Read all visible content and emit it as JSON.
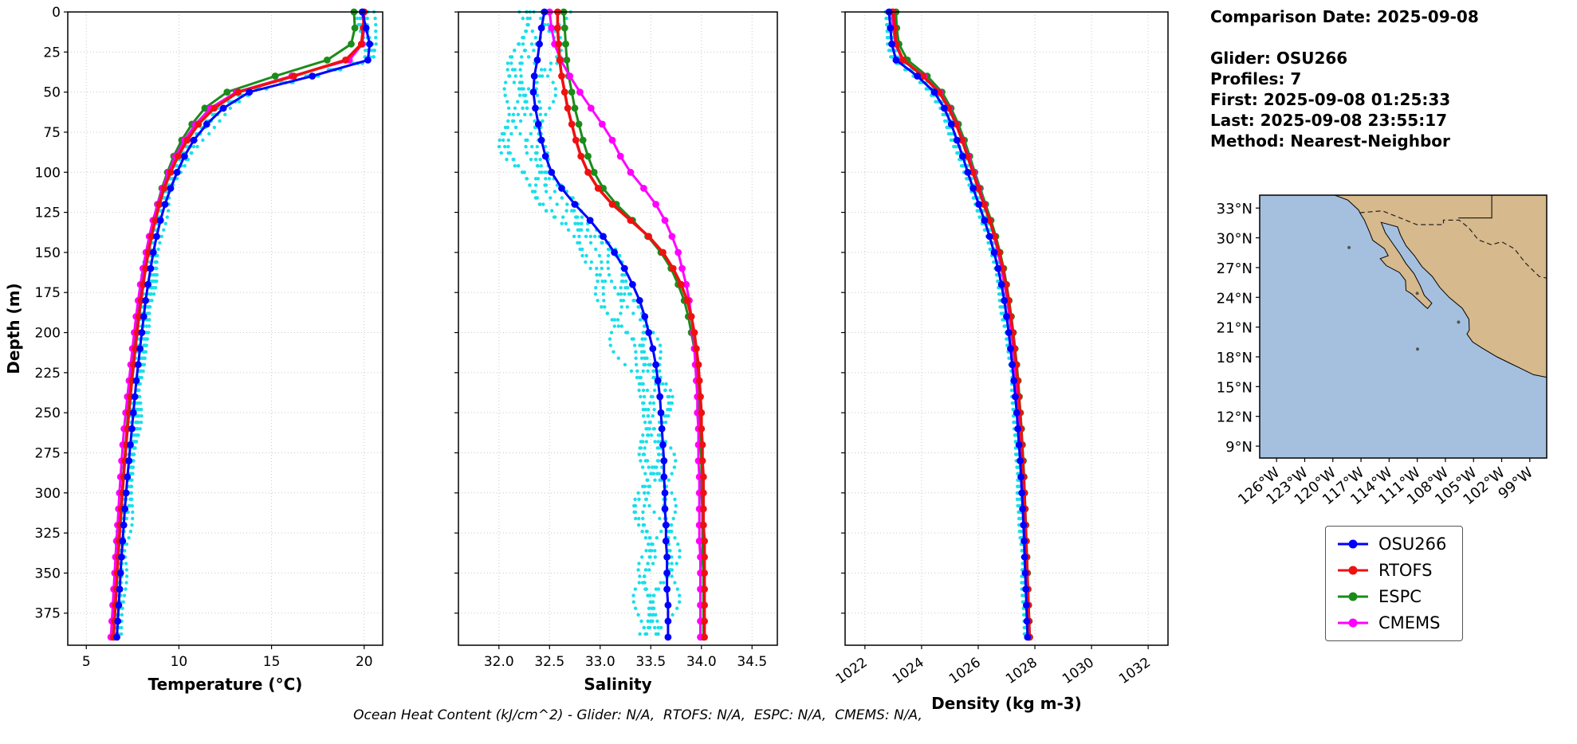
{
  "info_panel": {
    "lines": [
      "Comparison Date: 2025-09-08",
      "",
      "Glider: OSU266",
      "Profiles: 7",
      "First: 2025-09-08 01:25:33",
      "Last: 2025-09-08 23:55:17",
      "Method: Nearest-Neighbor"
    ]
  },
  "footer_note": "Ocean Heat Content (kJ/cm^2) - Glider: N/A,  RTOFS: N/A,  ESPC: N/A,  CMEMS: N/A,",
  "series_colors": {
    "OSU266": "#0000ff",
    "RTOFS": "#ee1111",
    "ESPC": "#1a8c1a",
    "CMEMS": "#ff00ff"
  },
  "legend": {
    "entries": [
      {
        "label": "OSU266"
      },
      {
        "label": "RTOFS"
      },
      {
        "label": "ESPC"
      },
      {
        "label": "CMEMS"
      }
    ]
  },
  "depths": [
    0,
    10,
    20,
    30,
    40,
    50,
    60,
    70,
    80,
    90,
    100,
    110,
    120,
    130,
    140,
    150,
    160,
    170,
    180,
    190,
    200,
    210,
    220,
    230,
    240,
    250,
    260,
    270,
    280,
    290,
    300,
    310,
    320,
    330,
    340,
    350,
    360,
    370,
    380,
    390
  ],
  "depth_axis": {
    "label": "Depth (m)",
    "lim": [
      0,
      395
    ],
    "values": [
      0,
      25,
      50,
      75,
      100,
      125,
      150,
      175,
      200,
      225,
      250,
      275,
      300,
      325,
      350,
      375
    ],
    "labels": [
      "0",
      "25",
      "50",
      "75",
      "100",
      "125",
      "150",
      "175",
      "200",
      "225",
      "250",
      "275",
      "300",
      "325",
      "350",
      "375"
    ]
  },
  "chart_data": [
    {
      "type": "line",
      "title": "",
      "xlabel": "Temperature (°C)",
      "ylabel": "Depth (m)",
      "xlim": [
        4,
        21
      ],
      "xticks": [
        5,
        10,
        15,
        20
      ],
      "xtick_labels": [
        "5",
        "10",
        "15",
        "20"
      ],
      "y_inverted": true,
      "grid": true,
      "series": [
        {
          "name": "OSU266",
          "values": [
            19.9,
            20.1,
            20.3,
            20.2,
            17.2,
            13.8,
            12.4,
            11.5,
            10.8,
            10.3,
            9.9,
            9.55,
            9.25,
            9.0,
            8.8,
            8.62,
            8.47,
            8.33,
            8.2,
            8.1,
            8.0,
            7.9,
            7.8,
            7.7,
            7.62,
            7.54,
            7.46,
            7.38,
            7.3,
            7.22,
            7.15,
            7.08,
            7.02,
            6.96,
            6.9,
            6.85,
            6.8,
            6.75,
            6.7,
            6.65
          ]
        },
        {
          "name": "RTOFS",
          "values": [
            20.0,
            19.95,
            19.85,
            19.0,
            16.2,
            13.2,
            11.9,
            11.05,
            10.45,
            9.95,
            9.55,
            9.2,
            8.95,
            8.72,
            8.52,
            8.35,
            8.2,
            8.07,
            7.95,
            7.84,
            7.74,
            7.64,
            7.55,
            7.46,
            7.38,
            7.3,
            7.22,
            7.15,
            7.08,
            7.01,
            6.95,
            6.89,
            6.83,
            6.77,
            6.72,
            6.67,
            6.62,
            6.57,
            6.52,
            6.47
          ]
        },
        {
          "name": "ESPC",
          "values": [
            19.45,
            19.5,
            19.3,
            18.0,
            15.2,
            12.6,
            11.4,
            10.7,
            10.15,
            9.72,
            9.38,
            9.08,
            8.84,
            8.62,
            8.44,
            8.28,
            8.13,
            8.0,
            7.89,
            7.78,
            7.68,
            7.59,
            7.5,
            7.42,
            7.34,
            7.26,
            7.19,
            7.12,
            7.05,
            6.99,
            6.93,
            6.87,
            6.82,
            6.77,
            6.72,
            6.67,
            6.62,
            6.57,
            6.52,
            6.48
          ]
        },
        {
          "name": "CMEMS",
          "values": [
            19.9,
            20.0,
            19.9,
            19.2,
            16.1,
            13.1,
            11.7,
            10.9,
            10.3,
            9.82,
            9.45,
            9.12,
            8.85,
            8.6,
            8.4,
            8.22,
            8.06,
            7.92,
            7.8,
            7.69,
            7.59,
            7.49,
            7.4,
            7.31,
            7.22,
            7.13,
            7.04,
            6.97,
            6.91,
            6.85,
            6.79,
            6.74,
            6.69,
            6.63,
            6.58,
            6.53,
            6.48,
            6.43,
            6.38,
            6.33
          ]
        }
      ],
      "raw_band": {
        "series": "OSU266",
        "color": "#00dce8",
        "profiles": 7,
        "spread": 0.35,
        "bias": 0.05,
        "seed": 11
      }
    },
    {
      "type": "line",
      "title": "",
      "xlabel": "Salinity",
      "ylabel": "Depth (m)",
      "xlim": [
        31.6,
        34.75
      ],
      "xticks": [
        32.0,
        32.5,
        33.0,
        33.5,
        34.0,
        34.5
      ],
      "xtick_labels": [
        "32.0",
        "32.5",
        "33.0",
        "33.5",
        "34.0",
        "34.5"
      ],
      "y_inverted": true,
      "grid": true,
      "series": [
        {
          "name": "OSU266",
          "values": [
            32.45,
            32.42,
            32.4,
            32.38,
            32.35,
            32.34,
            32.36,
            32.39,
            32.42,
            32.46,
            32.52,
            32.62,
            32.75,
            32.9,
            33.03,
            33.14,
            33.24,
            33.32,
            33.39,
            33.44,
            33.48,
            33.52,
            33.55,
            33.57,
            33.59,
            33.6,
            33.61,
            33.62,
            33.63,
            33.63,
            33.64,
            33.64,
            33.65,
            33.65,
            33.66,
            33.66,
            33.66,
            33.67,
            33.67,
            33.67
          ]
        },
        {
          "name": "RTOFS",
          "values": [
            32.58,
            32.58,
            32.59,
            32.6,
            32.62,
            32.65,
            32.68,
            32.72,
            32.76,
            32.81,
            32.88,
            32.98,
            33.12,
            33.3,
            33.48,
            33.62,
            33.72,
            33.8,
            33.86,
            33.9,
            33.93,
            33.95,
            33.97,
            33.98,
            33.99,
            34.0,
            34.0,
            34.01,
            34.01,
            34.02,
            34.02,
            34.02,
            34.02,
            34.03,
            34.03,
            34.03,
            34.03,
            34.03,
            34.03,
            34.03
          ]
        },
        {
          "name": "ESPC",
          "values": [
            32.64,
            32.65,
            32.66,
            32.67,
            32.69,
            32.72,
            32.75,
            32.79,
            32.83,
            32.88,
            32.94,
            33.03,
            33.16,
            33.32,
            33.47,
            33.6,
            33.7,
            33.77,
            33.83,
            33.87,
            33.9,
            33.93,
            33.95,
            33.96,
            33.97,
            33.98,
            33.99,
            33.99,
            34.0,
            34.0,
            34.0,
            34.01,
            34.01,
            34.01,
            34.01,
            34.02,
            34.02,
            34.02,
            34.02,
            34.02
          ]
        },
        {
          "name": "CMEMS",
          "values": [
            32.5,
            32.52,
            32.55,
            32.61,
            32.7,
            32.8,
            32.91,
            33.02,
            33.12,
            33.2,
            33.3,
            33.43,
            33.55,
            33.64,
            33.71,
            33.77,
            33.81,
            33.85,
            33.88,
            33.9,
            33.92,
            33.93,
            33.94,
            33.95,
            33.96,
            33.96,
            33.97,
            33.97,
            33.97,
            33.98,
            33.98,
            33.98,
            33.98,
            33.98,
            33.99,
            33.99,
            33.99,
            33.99,
            33.99,
            33.99
          ]
        }
      ],
      "raw_band": {
        "series": "OSU266",
        "color": "#00dce8",
        "profiles": 7,
        "spread": 0.22,
        "bias": -0.12,
        "seed": 23
      }
    },
    {
      "type": "line",
      "title": "",
      "xlabel": "Density (kg m-3)",
      "ylabel": "Depth (m)",
      "xlim": [
        1021.3,
        1032.7
      ],
      "xticks": [
        1022,
        1024,
        1026,
        1028,
        1030,
        1032
      ],
      "xtick_labels": [
        "1022",
        "1024",
        "1026",
        "1028",
        "1030",
        "1032"
      ],
      "y_inverted": true,
      "grid": true,
      "series": [
        {
          "name": "OSU266",
          "values": [
            1022.85,
            1022.9,
            1022.95,
            1023.1,
            1023.85,
            1024.45,
            1024.8,
            1025.05,
            1025.25,
            1025.45,
            1025.63,
            1025.82,
            1026.02,
            1026.22,
            1026.4,
            1026.56,
            1026.7,
            1026.82,
            1026.92,
            1027.0,
            1027.08,
            1027.14,
            1027.2,
            1027.26,
            1027.31,
            1027.36,
            1027.4,
            1027.44,
            1027.48,
            1027.51,
            1027.54,
            1027.57,
            1027.6,
            1027.62,
            1027.64,
            1027.66,
            1027.68,
            1027.7,
            1027.72,
            1027.74
          ]
        },
        {
          "name": "RTOFS",
          "values": [
            1023.0,
            1023.05,
            1023.1,
            1023.35,
            1024.05,
            1024.62,
            1024.96,
            1025.22,
            1025.43,
            1025.62,
            1025.81,
            1026.0,
            1026.2,
            1026.4,
            1026.58,
            1026.74,
            1026.87,
            1026.98,
            1027.07,
            1027.15,
            1027.22,
            1027.28,
            1027.34,
            1027.39,
            1027.43,
            1027.47,
            1027.51,
            1027.54,
            1027.57,
            1027.6,
            1027.63,
            1027.65,
            1027.67,
            1027.69,
            1027.71,
            1027.73,
            1027.75,
            1027.77,
            1027.79,
            1027.81
          ]
        },
        {
          "name": "ESPC",
          "values": [
            1023.1,
            1023.12,
            1023.2,
            1023.5,
            1024.2,
            1024.72,
            1025.04,
            1025.3,
            1025.51,
            1025.7,
            1025.88,
            1026.07,
            1026.26,
            1026.45,
            1026.62,
            1026.77,
            1026.9,
            1027.0,
            1027.09,
            1027.17,
            1027.24,
            1027.3,
            1027.36,
            1027.41,
            1027.45,
            1027.49,
            1027.53,
            1027.56,
            1027.59,
            1027.62,
            1027.64,
            1027.66,
            1027.68,
            1027.7,
            1027.72,
            1027.74,
            1027.76,
            1027.78,
            1027.8,
            1027.82
          ]
        },
        {
          "name": "CMEMS",
          "values": [
            1022.95,
            1023.0,
            1023.08,
            1023.32,
            1024.08,
            1024.64,
            1024.98,
            1025.24,
            1025.45,
            1025.65,
            1025.84,
            1026.03,
            1026.22,
            1026.4,
            1026.56,
            1026.7,
            1026.82,
            1026.93,
            1027.02,
            1027.1,
            1027.17,
            1027.23,
            1027.29,
            1027.34,
            1027.38,
            1027.42,
            1027.46,
            1027.5,
            1027.53,
            1027.56,
            1027.59,
            1027.61,
            1027.63,
            1027.65,
            1027.67,
            1027.69,
            1027.71,
            1027.73,
            1027.75,
            1027.77
          ]
        }
      ],
      "raw_band": {
        "series": "OSU266",
        "color": "#00dce8",
        "profiles": 7,
        "spread": 0.12,
        "bias": -0.03,
        "seed": 37
      }
    }
  ],
  "map": {
    "extent": {
      "lat_min": 7.8,
      "lat_max": 34.3,
      "lon_min": -127.8,
      "lon_max": -97.2
    },
    "ocean_color": "#a5c0de",
    "land_color": "#d6b98c",
    "lat_ticks": [
      33,
      30,
      27,
      24,
      21,
      18,
      15,
      12,
      9
    ],
    "lat_tick_labels": [
      "33°N",
      "30°N",
      "27°N",
      "24°N",
      "21°N",
      "18°N",
      "15°N",
      "12°N",
      "9°N"
    ],
    "lon_ticks": [
      -126,
      -123,
      -120,
      -117,
      -114,
      -111,
      -108,
      -105,
      -102,
      -99
    ],
    "lon_tick_labels": [
      "126°W",
      "123°W",
      "120°W",
      "117°W",
      "114°W",
      "111°W",
      "108°W",
      "105°W",
      "102°W",
      "99°W"
    ],
    "coastline": [
      [
        34.3,
        -119.8
      ],
      [
        33.8,
        -118.4
      ],
      [
        32.8,
        -117.25
      ],
      [
        32.53,
        -117.12
      ],
      [
        31.8,
        -116.65
      ],
      [
        30.5,
        -116.05
      ],
      [
        29.75,
        -115.75
      ],
      [
        28.9,
        -114.5
      ],
      [
        28.2,
        -114.1
      ],
      [
        27.9,
        -114.95
      ],
      [
        27.2,
        -114.3
      ],
      [
        26.5,
        -112.9
      ],
      [
        25.7,
        -112.25
      ],
      [
        24.7,
        -112.2
      ],
      [
        24.35,
        -111.6
      ],
      [
        23.2,
        -110.3
      ],
      [
        22.87,
        -109.9
      ],
      [
        23.4,
        -109.45
      ],
      [
        24.2,
        -110.25
      ],
      [
        25.2,
        -110.7
      ],
      [
        26.4,
        -111.35
      ],
      [
        27.4,
        -112.2
      ],
      [
        28.4,
        -112.85
      ],
      [
        29.4,
        -113.6
      ],
      [
        30.5,
        -114.4
      ],
      [
        31.55,
        -114.85
      ],
      [
        31.1,
        -113.1
      ],
      [
        30.3,
        -112.8
      ],
      [
        29.2,
        -112.2
      ],
      [
        28.2,
        -111.3
      ],
      [
        27.1,
        -110.5
      ],
      [
        26.1,
        -109.4
      ],
      [
        25.0,
        -108.6
      ],
      [
        24.0,
        -107.6
      ],
      [
        22.9,
        -106.2
      ],
      [
        21.8,
        -105.5
      ],
      [
        20.7,
        -105.45
      ],
      [
        20.3,
        -105.7
      ],
      [
        19.5,
        -105.1
      ],
      [
        18.9,
        -104.1
      ],
      [
        18.0,
        -102.5
      ],
      [
        17.4,
        -101.2
      ],
      [
        16.8,
        -99.9
      ],
      [
        16.2,
        -98.6
      ],
      [
        15.9,
        -97.0
      ],
      [
        34.3,
        -97.0
      ]
    ],
    "border_dashed": [
      [
        32.53,
        -117.12
      ],
      [
        32.72,
        -114.72
      ],
      [
        31.33,
        -111.04
      ],
      [
        31.33,
        -108.21
      ],
      [
        31.78,
        -108.21
      ],
      [
        31.78,
        -106.53
      ],
      [
        31.0,
        -105.5
      ],
      [
        29.8,
        -104.5
      ],
      [
        29.3,
        -103.1
      ],
      [
        29.6,
        -102.0
      ],
      [
        28.9,
        -100.65
      ],
      [
        27.5,
        -99.5
      ],
      [
        26.1,
        -98.0
      ],
      [
        25.9,
        -97.0
      ]
    ],
    "state_lines": [
      [
        [
          32.0,
          -106.62
        ],
        [
          32.0,
          -103.06
        ],
        [
          34.3,
          -103.06
        ]
      ]
    ],
    "islands": [
      [
        29.02,
        -118.27
      ],
      [
        18.78,
        -110.97
      ],
      [
        21.5,
        -106.6
      ],
      [
        24.4,
        -111.0
      ]
    ]
  }
}
